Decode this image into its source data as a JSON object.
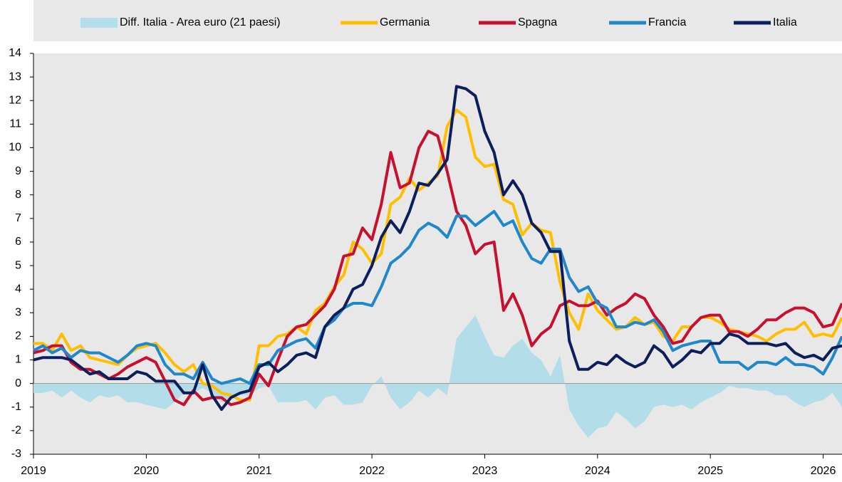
{
  "chart_data": {
    "type": "line",
    "x": [
      2019,
      2019.083,
      2019.167,
      2019.25,
      2019.333,
      2019.417,
      2019.5,
      2019.583,
      2019.667,
      2019.75,
      2019.833,
      2019.917,
      2020,
      2020.083,
      2020.167,
      2020.25,
      2020.333,
      2020.417,
      2020.5,
      2020.583,
      2020.667,
      2020.75,
      2020.833,
      2020.917,
      2021,
      2021.083,
      2021.167,
      2021.25,
      2021.333,
      2021.417,
      2021.5,
      2021.583,
      2021.667,
      2021.75,
      2021.833,
      2021.917,
      2022,
      2022.083,
      2022.167,
      2022.25,
      2022.333,
      2022.417,
      2022.5,
      2022.583,
      2022.667,
      2022.75,
      2022.833,
      2022.917,
      2023,
      2023.083,
      2023.167,
      2023.25,
      2023.333,
      2023.417,
      2023.5,
      2023.583,
      2023.667,
      2023.75,
      2023.833,
      2023.917,
      2024,
      2024.083,
      2024.167,
      2024.25,
      2024.333,
      2024.417,
      2024.5,
      2024.583,
      2024.667,
      2024.75,
      2024.833,
      2024.917,
      2025,
      2025.083,
      2025.167,
      2025.25,
      2025.333,
      2025.417,
      2025.5,
      2025.583,
      2025.667,
      2025.75,
      2025.833,
      2025.917,
      2026,
      2026.083,
      2026.167
    ],
    "xlim": [
      2019,
      2026.167
    ],
    "xticks": [
      2019,
      2020,
      2021,
      2022,
      2023,
      2024,
      2025,
      2026
    ],
    "ylim": [
      -3,
      14
    ],
    "yticks": [
      -3,
      -2,
      -1,
      0,
      1,
      2,
      3,
      4,
      5,
      6,
      7,
      8,
      9,
      10,
      11,
      12,
      13,
      14
    ],
    "series": [
      {
        "name": "Diff. Italia - Area euro (21 paesi)",
        "kind": "area",
        "color": "#b3dde8",
        "values": [
          -0.4,
          -0.4,
          -0.3,
          -0.6,
          -0.3,
          -0.6,
          -0.8,
          -0.5,
          -0.6,
          -0.5,
          -0.8,
          -0.8,
          -0.9,
          -1.0,
          -1.1,
          -0.8,
          -0.4,
          -0.4,
          -0.2,
          -0.4,
          -0.8,
          -0.6,
          -0.5,
          -0.5,
          -0.2,
          -0.1,
          -0.8,
          -0.8,
          -0.8,
          -0.7,
          -1.1,
          -0.6,
          -0.5,
          -0.9,
          -0.9,
          -0.8,
          -0.1,
          0.3,
          -0.6,
          -1.1,
          -0.8,
          -0.3,
          -0.6,
          -0.2,
          -0.5,
          1.9,
          2.4,
          2.9,
          2.0,
          1.2,
          1.1,
          1.6,
          1.9,
          1.3,
          1.0,
          0.3,
          1.2,
          -1.1,
          -1.8,
          -2.3,
          -1.9,
          -1.8,
          -1.2,
          -1.5,
          -1.9,
          -1.6,
          -1.0,
          -0.9,
          -1.0,
          -0.9,
          -1.1,
          -0.8,
          -0.6,
          -0.4,
          -0.1,
          -0.2,
          -0.2,
          -0.3,
          -0.3,
          -0.5,
          -0.5,
          -0.8,
          -1.0,
          -0.8,
          -0.7,
          -0.4,
          -1.0
        ]
      },
      {
        "name": "Germania",
        "color": "#ffbf00",
        "values": [
          1.7,
          1.7,
          1.4,
          2.1,
          1.4,
          1.6,
          1.1,
          1.0,
          0.9,
          0.8,
          1.2,
          1.5,
          1.6,
          1.7,
          1.3,
          0.8,
          0.5,
          0.8,
          0.0,
          -0.1,
          -0.4,
          -0.5,
          -0.7,
          -0.7,
          1.6,
          1.6,
          2.0,
          2.1,
          2.4,
          2.1,
          3.1,
          3.4,
          4.1,
          4.6,
          6.0,
          5.7,
          5.1,
          5.5,
          7.6,
          7.9,
          8.7,
          8.2,
          8.5,
          8.8,
          10.9,
          11.6,
          11.3,
          9.6,
          9.2,
          9.3,
          7.8,
          7.6,
          6.3,
          6.8,
          6.5,
          6.4,
          4.3,
          3.0,
          2.3,
          3.8,
          3.1,
          2.7,
          2.3,
          2.4,
          2.8,
          2.5,
          2.6,
          2.0,
          1.8,
          2.4,
          2.4,
          2.8,
          2.8,
          2.6,
          2.3,
          2.2,
          2.1,
          2.0,
          1.8,
          2.1,
          2.3,
          2.3,
          2.6,
          2.0,
          2.1,
          2.0,
          2.8
        ]
      },
      {
        "name": "Spagna",
        "color": "#c8102e",
        "values": [
          1.3,
          1.4,
          1.6,
          1.6,
          0.9,
          0.6,
          0.6,
          0.4,
          0.2,
          0.4,
          0.7,
          0.9,
          1.1,
          0.9,
          0.1,
          -0.7,
          -0.9,
          -0.3,
          -0.7,
          -0.6,
          -0.6,
          -0.9,
          -0.8,
          -0.6,
          0.4,
          -0.1,
          1.0,
          2.0,
          2.4,
          2.5,
          2.9,
          3.3,
          4.0,
          5.4,
          5.5,
          6.6,
          6.1,
          7.6,
          9.8,
          8.3,
          8.5,
          10.0,
          10.7,
          10.5,
          9.0,
          7.3,
          6.7,
          5.5,
          5.9,
          6.0,
          3.1,
          3.8,
          2.9,
          1.6,
          2.1,
          2.4,
          3.3,
          3.5,
          3.3,
          3.3,
          3.5,
          2.9,
          3.2,
          3.4,
          3.8,
          3.6,
          2.9,
          2.4,
          1.7,
          1.8,
          2.4,
          2.8,
          2.9,
          2.9,
          2.2,
          2.2,
          2.0,
          2.3,
          2.7,
          2.7,
          3.0,
          3.2,
          3.2,
          3.0,
          2.4,
          2.5,
          3.4
        ]
      },
      {
        "name": "Francia",
        "color": "#1f88cc",
        "values": [
          1.4,
          1.6,
          1.3,
          1.5,
          1.1,
          1.4,
          1.3,
          1.3,
          1.1,
          0.9,
          1.2,
          1.6,
          1.7,
          1.6,
          0.8,
          0.4,
          0.4,
          0.2,
          0.9,
          0.2,
          0.0,
          0.1,
          0.2,
          0.0,
          0.8,
          0.8,
          1.4,
          1.6,
          1.8,
          1.9,
          1.5,
          2.4,
          2.7,
          3.2,
          3.4,
          3.4,
          3.3,
          4.1,
          5.1,
          5.4,
          5.8,
          6.5,
          6.8,
          6.6,
          6.2,
          7.1,
          7.1,
          6.7,
          7.0,
          7.3,
          6.7,
          6.9,
          6.0,
          5.3,
          5.1,
          5.7,
          5.7,
          4.5,
          3.9,
          4.1,
          3.4,
          3.2,
          2.4,
          2.4,
          2.6,
          2.5,
          2.7,
          2.2,
          1.4,
          1.6,
          1.7,
          1.8,
          1.8,
          0.9,
          0.9,
          0.9,
          0.6,
          0.9,
          0.9,
          0.8,
          1.1,
          0.8,
          0.8,
          0.7,
          0.4,
          1.1,
          2.0
        ]
      },
      {
        "name": "Italia",
        "color": "#0c1e5b",
        "values": [
          1.0,
          1.1,
          1.1,
          1.1,
          1.0,
          0.7,
          0.4,
          0.5,
          0.2,
          0.2,
          0.2,
          0.5,
          0.4,
          0.1,
          0.1,
          0.1,
          -0.4,
          -0.4,
          0.8,
          -0.5,
          -1.1,
          -0.6,
          -0.4,
          -0.3,
          0.7,
          0.9,
          0.5,
          0.8,
          1.2,
          1.3,
          1.1,
          2.4,
          2.9,
          3.2,
          4.0,
          4.2,
          5.0,
          6.2,
          6.9,
          6.4,
          7.3,
          8.5,
          8.4,
          8.9,
          9.5,
          12.6,
          12.5,
          12.2,
          10.7,
          9.8,
          8.0,
          8.6,
          8.0,
          6.8,
          6.4,
          5.6,
          5.6,
          1.8,
          0.6,
          0.6,
          0.9,
          0.8,
          1.2,
          0.9,
          0.7,
          0.9,
          1.6,
          1.3,
          0.7,
          1.0,
          1.4,
          1.3,
          1.7,
          1.7,
          2.1,
          2.0,
          1.7,
          1.7,
          1.7,
          1.6,
          1.7,
          1.3,
          1.1,
          1.2,
          1.0,
          1.5,
          1.6
        ]
      }
    ]
  }
}
